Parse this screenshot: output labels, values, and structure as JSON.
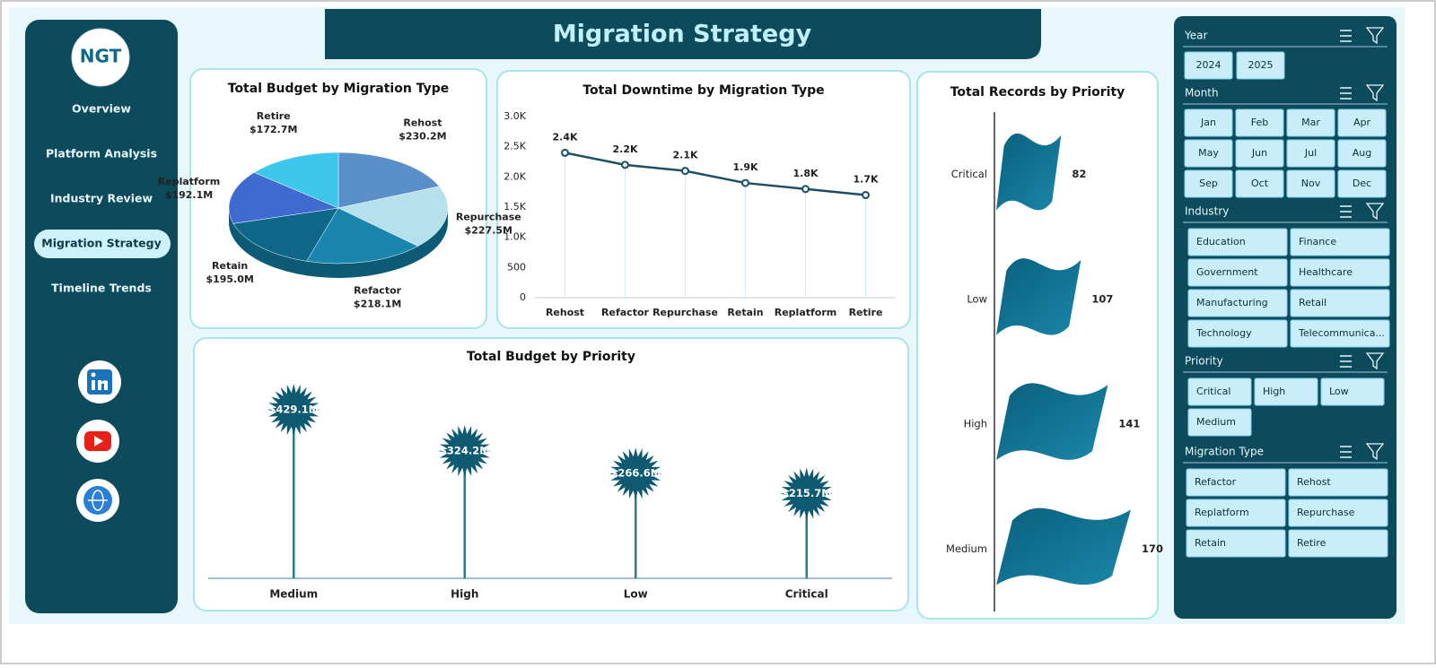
{
  "title": "Migration Strategy",
  "logo": "NGT",
  "nav": [
    "Overview",
    "Platform Analysis",
    "Industry Review",
    "Migration Strategy",
    "Timeline Trends"
  ],
  "chart_data": [
    {
      "type": "pie",
      "title": "Total Budget by Migration Type",
      "categories": [
        "Rehost",
        "Repurchase",
        "Refactor",
        "Retain",
        "Replatform",
        "Retire"
      ],
      "values": [
        230.2,
        227.5,
        218.1,
        195.0,
        192.1,
        172.7
      ],
      "value_labels": [
        "$230.2M",
        "$227.5M",
        "$218.1M",
        "$195.0M",
        "$192.1M",
        "$172.7M"
      ],
      "colors": [
        "#5b8fc9",
        "#b5e0ee",
        "#1a86ae",
        "#0e6788",
        "#3f6bd0",
        "#3ec6ec"
      ]
    },
    {
      "type": "line",
      "title": "Total Downtime by Migration Type",
      "categories": [
        "Rehost",
        "Refactor",
        "Repurchase",
        "Retain",
        "Replatform",
        "Retire"
      ],
      "values": [
        2400,
        2200,
        2100,
        1900,
        1800,
        1700
      ],
      "value_labels": [
        "2.4K",
        "2.2K",
        "2.1K",
        "1.9K",
        "1.8K",
        "1.7K"
      ],
      "color": "#1d4e63",
      "ylim": [
        0,
        3000
      ],
      "yticks": [
        0,
        500,
        {
          "value": 1000,
          "label": "1.0K"
        },
        {
          "value": 1500,
          "label": "1.5K"
        },
        {
          "value": 2000,
          "label": "2.0K"
        },
        {
          "value": 2500,
          "label": "2.5K"
        },
        {
          "value": 3000,
          "label": "3.0K"
        }
      ]
    },
    {
      "type": "lollipop",
      "title": "Total Budget by Priority",
      "categories": [
        "Medium",
        "High",
        "Low",
        "Critical"
      ],
      "values": [
        429.1,
        324.2,
        266.6,
        215.7
      ],
      "value_labels": [
        "$429.1M",
        "$324.2M",
        "$266.6M",
        "$215.7M"
      ],
      "color": "#0e5a72"
    },
    {
      "type": "flag",
      "title": "Total Records by Priority",
      "categories": [
        "Critical",
        "Low",
        "High",
        "Medium"
      ],
      "values": [
        82,
        107,
        141,
        170
      ],
      "color": "#0e5a72"
    }
  ],
  "slicers": [
    {
      "title": "Year",
      "items": [
        "2024",
        "2025"
      ]
    },
    {
      "title": "Month",
      "items": [
        "Jan",
        "Feb",
        "Mar",
        "Apr",
        "May",
        "Jun",
        "Jul",
        "Aug",
        "Sep",
        "Oct",
        "Nov",
        "Dec"
      ]
    },
    {
      "title": "Industry",
      "items": [
        "Education",
        "Finance",
        "Government",
        "Healthcare",
        "Manufacturing",
        "Retail",
        "Technology",
        "Telecommunica..."
      ]
    },
    {
      "title": "Priority",
      "items": [
        "Critical",
        "High",
        "Low",
        "Medium"
      ]
    },
    {
      "title": "Migration Type",
      "items": [
        "Refactor",
        "Rehost",
        "Replatform",
        "Repurchase",
        "Retain",
        "Retire"
      ]
    }
  ]
}
